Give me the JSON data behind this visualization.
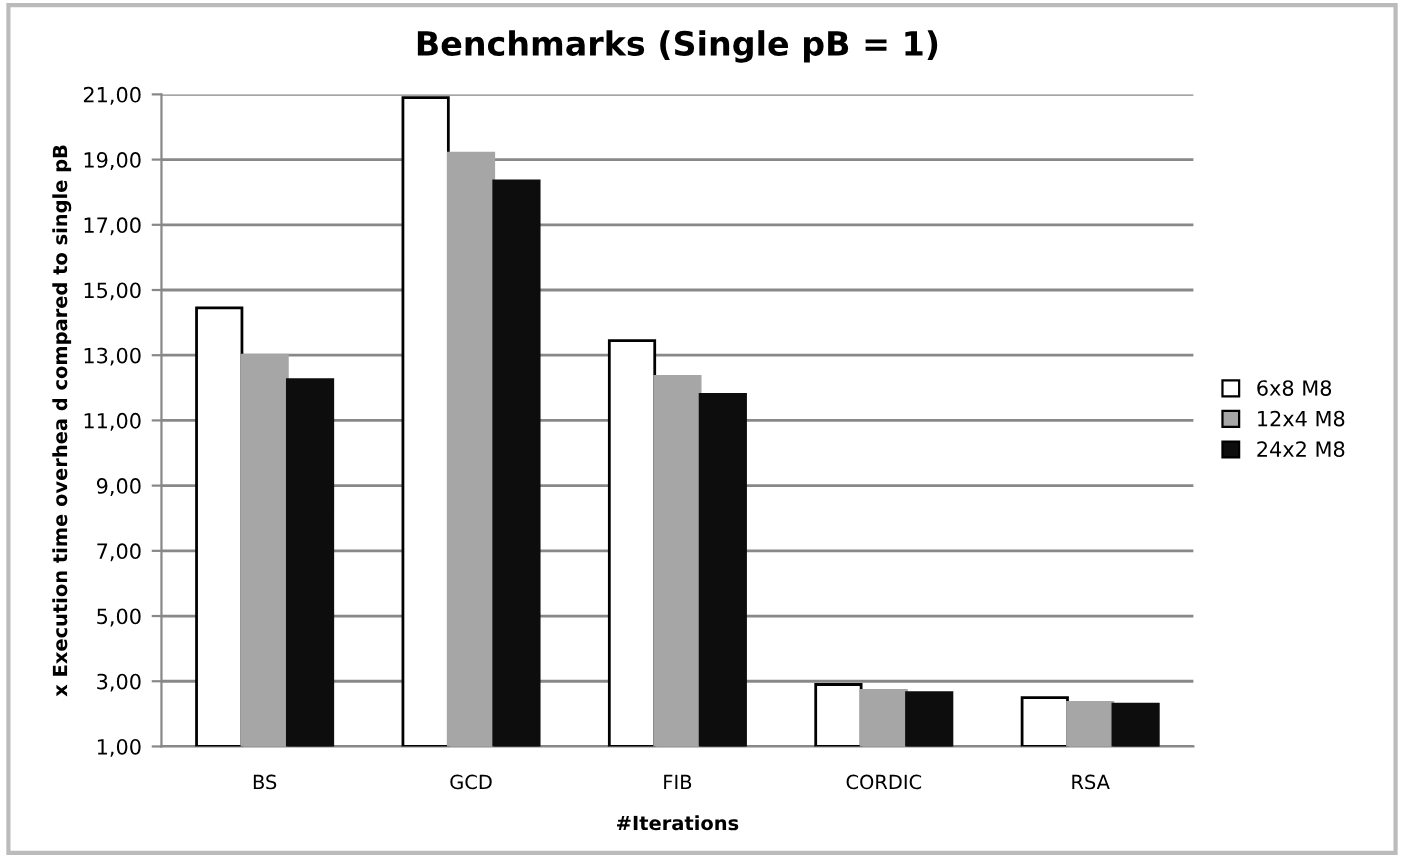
{
  "chart_data": {
    "type": "bar",
    "title": "Benchmarks (Single pB = 1)",
    "xlabel": "#Iterations",
    "ylabel": "x Execution time overhea d compared to single pB",
    "categories": [
      "BS",
      "GCD",
      "FIB",
      "CORDIC",
      "RSA"
    ],
    "series": [
      {
        "name": "6x8 M8",
        "color": "#ffffff",
        "values": [
          14.45,
          20.9,
          13.45,
          2.9,
          2.5
        ]
      },
      {
        "name": "12x4 M8",
        "color": "#a6a6a6",
        "values": [
          13.0,
          19.2,
          12.35,
          2.72,
          2.35
        ]
      },
      {
        "name": "24x2 M8",
        "color": "#0d0d0d",
        "values": [
          12.25,
          18.35,
          11.8,
          2.65,
          2.3
        ]
      }
    ],
    "ylim": [
      1,
      21
    ],
    "yticks": [
      {
        "value": 1,
        "label": "1,00"
      },
      {
        "value": 3,
        "label": "3,00"
      },
      {
        "value": 5,
        "label": "5,00"
      },
      {
        "value": 7,
        "label": "7,00"
      },
      {
        "value": 9,
        "label": "9,00"
      },
      {
        "value": 11,
        "label": "11,00"
      },
      {
        "value": 13,
        "label": "13,00"
      },
      {
        "value": 15,
        "label": "15,00"
      },
      {
        "value": 17,
        "label": "17,00"
      },
      {
        "value": 19,
        "label": "19,00"
      },
      {
        "value": 21,
        "label": "21,00"
      }
    ],
    "grid": "y",
    "legend": "right"
  }
}
